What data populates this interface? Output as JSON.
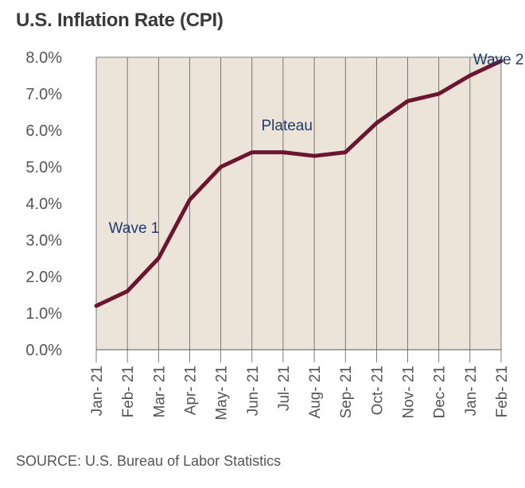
{
  "chart_data": {
    "type": "line",
    "title": "U.S. Inflation Rate (CPI)",
    "categories": [
      "Jan- 21",
      "Feb- 21",
      "Mar- 21",
      "Apr- 21",
      "May- 21",
      "Jun- 21",
      "Jul- 21",
      "Aug- 21",
      "Sep- 21",
      "Oct- 21",
      "Nov- 21",
      "Dec- 21",
      "Jan- 21",
      "Feb- 21"
    ],
    "values": [
      1.2,
      1.6,
      2.5,
      4.1,
      5.0,
      5.4,
      5.4,
      5.3,
      5.4,
      6.2,
      6.8,
      7.0,
      7.5,
      7.9
    ],
    "yticks": [
      "0.0%",
      "1.0%",
      "2.0%",
      "3.0%",
      "4.0%",
      "5.0%",
      "6.0%",
      "7.0%",
      "8.0%"
    ],
    "ylim": [
      0,
      8
    ],
    "xlabel": "",
    "ylabel": "",
    "grid": "vertical",
    "line_color": "#6b1530",
    "plot_background": "#ede4d9",
    "annotations": [
      {
        "text": "Wave 1",
        "x_index": 0.4,
        "y": 3.2
      },
      {
        "text": "Plateau",
        "x_index": 5.3,
        "y": 6.0
      },
      {
        "text": "Wave 2",
        "x_index": 12.1,
        "y": 7.8
      }
    ],
    "annotation_color": "#1f3a68"
  },
  "source": "SOURCE: U.S. Bureau of Labor Statistics"
}
